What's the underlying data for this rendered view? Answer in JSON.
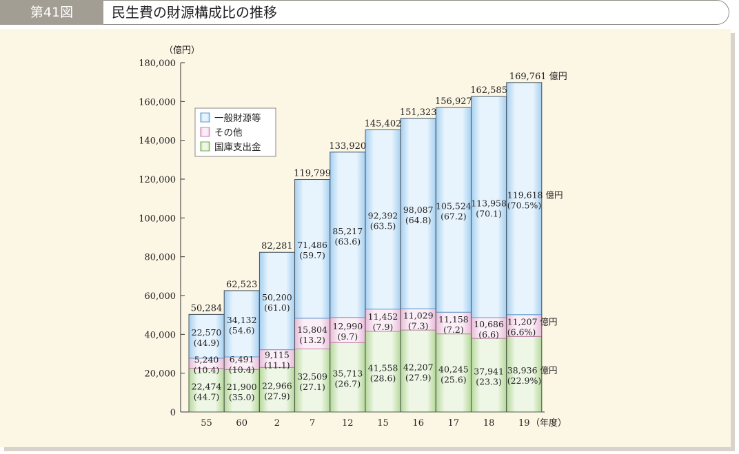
{
  "header": {
    "figure_number": "第41図",
    "title": "民生費の財源構成比の推移"
  },
  "colors": {
    "general": "#c7e3f7",
    "other": "#f4dcec",
    "national": "#d9ecc9"
  },
  "chart_data": {
    "type": "bar",
    "stacked": true,
    "ylabel": "（億円）",
    "xlabel": "（年度）",
    "ylim": [
      0,
      180000
    ],
    "yticks": [
      "180,000",
      "160,000",
      "140,000",
      "120,000",
      "100,000",
      "80,000",
      "60,000",
      "40,000",
      "20,000",
      "0"
    ],
    "categories": [
      "55",
      "60",
      "2",
      "7",
      "12",
      "15",
      "16",
      "17",
      "18",
      "19"
    ],
    "totals": [
      "50,284",
      "62,523",
      "82,281",
      "119,799",
      "133,920",
      "145,402",
      "151,323",
      "156,927",
      "162,585",
      "169,761 億円"
    ],
    "legend": [
      "一般財源等",
      "その他",
      "国庫支出金"
    ],
    "series": [
      {
        "name": "国庫支出金",
        "values": [
          22474,
          21900,
          22966,
          32509,
          35713,
          41558,
          42207,
          40245,
          37941,
          38936
        ],
        "value_labels": [
          "22,474",
          "21,900",
          "22,966",
          "32,509",
          "35,713",
          "41,558",
          "42,207",
          "40,245",
          "37,941",
          "38,936 億円"
        ],
        "pct_labels": [
          "(44.7)",
          "(35.0)",
          "(27.9)",
          "(27.1)",
          "(26.7)",
          "(28.6)",
          "(27.9)",
          "(25.6)",
          "(23.3)",
          "(22.9%)"
        ]
      },
      {
        "name": "その他",
        "values": [
          5240,
          6491,
          9115,
          15804,
          12990,
          11452,
          11029,
          11158,
          10686,
          11207
        ],
        "value_labels": [
          "5,240",
          "6,491",
          "9,115",
          "15,804",
          "12,990",
          "11,452",
          "11,029",
          "11,158",
          "10,686",
          "11,207 億円"
        ],
        "pct_labels": [
          "(10.4)",
          "(10.4)",
          "(11.1)",
          "(13.2)",
          "(9.7)",
          "(7.9)",
          "(7.3)",
          "(7.2)",
          "(6.6)",
          "(6.6%)"
        ]
      },
      {
        "name": "一般財源等",
        "values": [
          22570,
          34132,
          50200,
          71486,
          85217,
          92392,
          98087,
          105524,
          113958,
          119618
        ],
        "value_labels": [
          "22,570",
          "34,132",
          "50,200",
          "71,486",
          "85,217",
          "92,392",
          "98,087",
          "105,524",
          "113,958",
          "119,618 億円"
        ],
        "pct_labels": [
          "(44.9)",
          "(54.6)",
          "(61.0)",
          "(59.7)",
          "(63.6)",
          "(63.5)",
          "(64.8)",
          "(67.2)",
          "(70.1)",
          "(70.5%)"
        ]
      }
    ]
  }
}
